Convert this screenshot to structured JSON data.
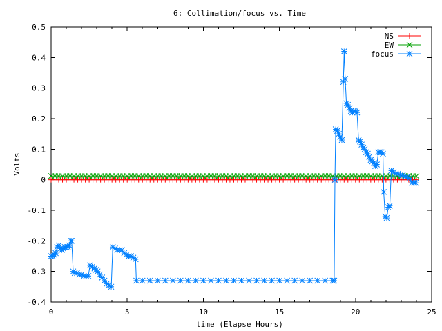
{
  "chart_data": {
    "type": "line",
    "title": "6: Collimation/focus vs. Time",
    "xlabel": "time (Elapse Hours)",
    "ylabel": "Volts",
    "xlim": [
      0,
      25
    ],
    "ylim": [
      -0.4,
      0.5
    ],
    "x_ticks": [
      0,
      5,
      10,
      15,
      20,
      25
    ],
    "y_ticks": [
      -0.4,
      -0.3,
      -0.2,
      -0.1,
      0,
      0.1,
      0.2,
      0.3,
      0.4,
      0.5
    ],
    "x_tick_labels": [
      "0",
      "5",
      "10",
      "15",
      "20",
      "25"
    ],
    "y_tick_labels": [
      "-0.4",
      "-0.3",
      "-0.2",
      "-0.1",
      "0",
      "0.1",
      "0.2",
      "0.3",
      "0.4",
      "0.5"
    ],
    "grid": false,
    "legend_position": "top-right",
    "series": [
      {
        "name": "NS",
        "color": "#ff0000",
        "marker": "plus",
        "points": [
          [
            0,
            0
          ],
          [
            24,
            0
          ]
        ]
      },
      {
        "name": "EW",
        "color": "#00a000",
        "marker": "cross",
        "points": [
          [
            0,
            0.012
          ],
          [
            24,
            0.012
          ]
        ]
      },
      {
        "name": "focus",
        "color": "#0080ff",
        "marker": "star",
        "points": [
          [
            0.0,
            -0.25
          ],
          [
            0.1,
            -0.25
          ],
          [
            0.2,
            -0.245
          ],
          [
            0.3,
            -0.24
          ],
          [
            0.4,
            -0.22
          ],
          [
            0.5,
            -0.215
          ],
          [
            0.6,
            -0.225
          ],
          [
            0.7,
            -0.23
          ],
          [
            0.8,
            -0.225
          ],
          [
            0.9,
            -0.22
          ],
          [
            1.0,
            -0.22
          ],
          [
            1.1,
            -0.22
          ],
          [
            1.2,
            -0.215
          ],
          [
            1.3,
            -0.2
          ],
          [
            1.35,
            -0.2
          ],
          [
            1.45,
            -0.3
          ],
          [
            1.55,
            -0.305
          ],
          [
            1.7,
            -0.305
          ],
          [
            1.85,
            -0.31
          ],
          [
            2.0,
            -0.31
          ],
          [
            2.15,
            -0.315
          ],
          [
            2.3,
            -0.315
          ],
          [
            2.45,
            -0.315
          ],
          [
            2.55,
            -0.28
          ],
          [
            2.7,
            -0.285
          ],
          [
            2.85,
            -0.29
          ],
          [
            2.95,
            -0.295
          ],
          [
            3.05,
            -0.3
          ],
          [
            3.2,
            -0.31
          ],
          [
            3.35,
            -0.32
          ],
          [
            3.5,
            -0.33
          ],
          [
            3.65,
            -0.34
          ],
          [
            3.8,
            -0.345
          ],
          [
            3.95,
            -0.35
          ],
          [
            4.05,
            -0.22
          ],
          [
            4.2,
            -0.225
          ],
          [
            4.35,
            -0.23
          ],
          [
            4.5,
            -0.23
          ],
          [
            4.65,
            -0.23
          ],
          [
            4.8,
            -0.24
          ],
          [
            4.95,
            -0.245
          ],
          [
            5.1,
            -0.25
          ],
          [
            5.25,
            -0.25
          ],
          [
            5.4,
            -0.255
          ],
          [
            5.55,
            -0.26
          ],
          [
            5.6,
            -0.33
          ],
          [
            6.0,
            -0.33
          ],
          [
            6.5,
            -0.33
          ],
          [
            7.0,
            -0.33
          ],
          [
            7.5,
            -0.33
          ],
          [
            8.0,
            -0.33
          ],
          [
            8.5,
            -0.33
          ],
          [
            9.0,
            -0.33
          ],
          [
            9.5,
            -0.33
          ],
          [
            10.0,
            -0.33
          ],
          [
            10.5,
            -0.33
          ],
          [
            11.0,
            -0.33
          ],
          [
            11.5,
            -0.33
          ],
          [
            12.0,
            -0.33
          ],
          [
            12.5,
            -0.33
          ],
          [
            13.0,
            -0.33
          ],
          [
            13.5,
            -0.33
          ],
          [
            14.0,
            -0.33
          ],
          [
            14.5,
            -0.33
          ],
          [
            15.0,
            -0.33
          ],
          [
            15.5,
            -0.33
          ],
          [
            16.0,
            -0.33
          ],
          [
            16.5,
            -0.33
          ],
          [
            17.0,
            -0.33
          ],
          [
            17.5,
            -0.33
          ],
          [
            18.0,
            -0.33
          ],
          [
            18.5,
            -0.33
          ],
          [
            18.6,
            -0.33
          ],
          [
            18.65,
            0.0
          ],
          [
            18.7,
            0.165
          ],
          [
            18.8,
            0.16
          ],
          [
            18.9,
            0.15
          ],
          [
            19.0,
            0.14
          ],
          [
            19.1,
            0.13
          ],
          [
            19.2,
            0.32
          ],
          [
            19.25,
            0.42
          ],
          [
            19.32,
            0.33
          ],
          [
            19.4,
            0.25
          ],
          [
            19.5,
            0.245
          ],
          [
            19.6,
            0.235
          ],
          [
            19.7,
            0.225
          ],
          [
            19.8,
            0.22
          ],
          [
            19.9,
            0.225
          ],
          [
            20.0,
            0.225
          ],
          [
            20.1,
            0.22
          ],
          [
            20.2,
            0.13
          ],
          [
            20.3,
            0.125
          ],
          [
            20.4,
            0.115
          ],
          [
            20.5,
            0.105
          ],
          [
            20.6,
            0.1
          ],
          [
            20.7,
            0.09
          ],
          [
            20.8,
            0.085
          ],
          [
            20.9,
            0.075
          ],
          [
            21.0,
            0.065
          ],
          [
            21.1,
            0.06
          ],
          [
            21.2,
            0.055
          ],
          [
            21.3,
            0.045
          ],
          [
            21.4,
            0.05
          ],
          [
            21.5,
            0.09
          ],
          [
            21.6,
            0.09
          ],
          [
            21.7,
            0.09
          ],
          [
            21.8,
            0.085
          ],
          [
            21.85,
            -0.04
          ],
          [
            21.95,
            -0.12
          ],
          [
            22.05,
            -0.125
          ],
          [
            22.15,
            -0.09
          ],
          [
            22.25,
            -0.085
          ],
          [
            22.35,
            0.03
          ],
          [
            22.5,
            0.025
          ],
          [
            22.65,
            0.02
          ],
          [
            22.8,
            0.02
          ],
          [
            22.95,
            0.015
          ],
          [
            23.1,
            0.015
          ],
          [
            23.25,
            0.01
          ],
          [
            23.4,
            0.01
          ],
          [
            23.55,
            0.005
          ],
          [
            23.7,
            -0.01
          ],
          [
            23.85,
            -0.01
          ],
          [
            23.95,
            -0.01
          ]
        ]
      }
    ]
  }
}
